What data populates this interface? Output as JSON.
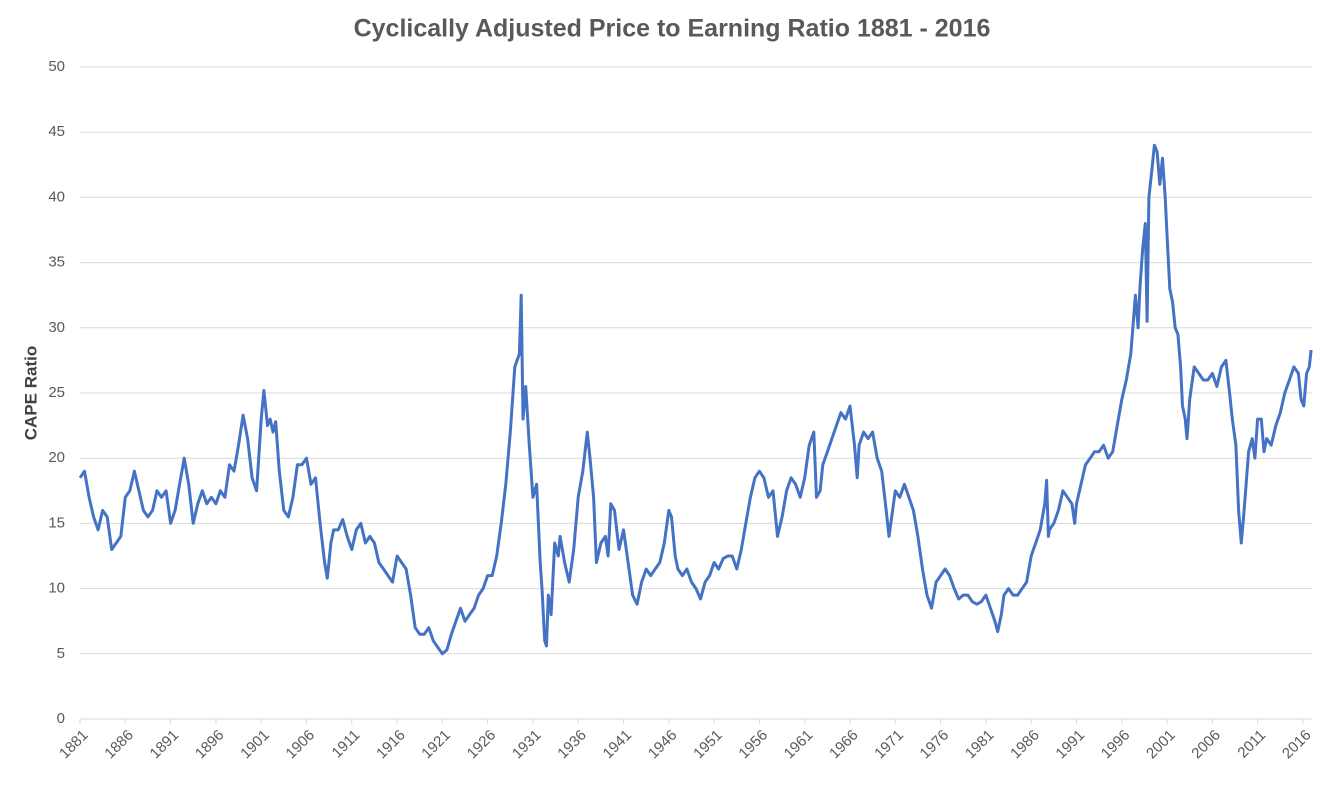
{
  "chart_data": {
    "type": "line",
    "title": "Cyclically Adjusted Price to Earning Ratio 1881 - 2016",
    "y_label": "CAPE Ratio",
    "xlim": [
      1881,
      2017
    ],
    "xticks": [
      1881,
      1886,
      1891,
      1896,
      1901,
      1906,
      1911,
      1916,
      1921,
      1926,
      1931,
      1936,
      1941,
      1946,
      1951,
      1956,
      1961,
      1966,
      1971,
      1976,
      1981,
      1986,
      1991,
      1996,
      2001,
      2006,
      2011,
      2016
    ],
    "ylim": [
      0,
      50
    ],
    "yticks": [
      0,
      5,
      10,
      15,
      20,
      25,
      30,
      35,
      40,
      45,
      50
    ],
    "grid": true,
    "series": [
      {
        "name": "CAPE Ratio",
        "color": "#4472c4",
        "x": [
          1881,
          1881.5,
          1882,
          1882.5,
          1883,
          1883.5,
          1884,
          1884.5,
          1885,
          1885.5,
          1886,
          1886.5,
          1887,
          1887.5,
          1888,
          1888.5,
          1889,
          1889.5,
          1890,
          1890.5,
          1891,
          1891.5,
          1892,
          1892.5,
          1893,
          1893.5,
          1894,
          1894.5,
          1895,
          1895.5,
          1896,
          1896.5,
          1897,
          1897.5,
          1898,
          1898.5,
          1899,
          1899.5,
          1900,
          1900.5,
          1901,
          1901.3,
          1901.7,
          1902,
          1902.3,
          1902.6,
          1903,
          1903.5,
          1904,
          1904.5,
          1905,
          1905.5,
          1906,
          1906.5,
          1907,
          1907.5,
          1908,
          1908.3,
          1908.7,
          1909,
          1909.5,
          1910,
          1910.5,
          1911,
          1911.5,
          1912,
          1912.5,
          1913,
          1913.5,
          1914,
          1914.5,
          1915,
          1915.5,
          1916,
          1916.5,
          1917,
          1917.5,
          1918,
          1918.5,
          1919,
          1919.5,
          1920,
          1920.5,
          1921,
          1921.5,
          1922,
          1922.5,
          1923,
          1923.5,
          1924,
          1924.5,
          1925,
          1925.5,
          1926,
          1926.5,
          1927,
          1927.5,
          1928,
          1928.5,
          1929,
          1929.5,
          1929.7,
          1929.9,
          1930.2,
          1930.6,
          1931,
          1931.4,
          1931.8,
          1932,
          1932.3,
          1932.5,
          1932.7,
          1933,
          1933.4,
          1933.8,
          1934,
          1934.5,
          1935,
          1935.5,
          1936,
          1936.5,
          1937,
          1937.3,
          1937.7,
          1938,
          1938.5,
          1939,
          1939.3,
          1939.6,
          1940,
          1940.5,
          1941,
          1941.5,
          1942,
          1942.5,
          1943,
          1943.5,
          1944,
          1944.5,
          1945,
          1945.5,
          1946,
          1946.3,
          1946.7,
          1947,
          1947.5,
          1948,
          1948.5,
          1949,
          1949.5,
          1950,
          1950.5,
          1951,
          1951.5,
          1952,
          1952.5,
          1953,
          1953.5,
          1954,
          1954.5,
          1955,
          1955.5,
          1956,
          1956.5,
          1957,
          1957.5,
          1958,
          1958.5,
          1959,
          1959.5,
          1960,
          1960.5,
          1961,
          1961.5,
          1962,
          1962.3,
          1962.7,
          1963,
          1963.5,
          1964,
          1964.5,
          1965,
          1965.5,
          1966,
          1966.5,
          1966.8,
          1967,
          1967.5,
          1968,
          1968.5,
          1969,
          1969.5,
          1970,
          1970.3,
          1970.7,
          1971,
          1971.5,
          1972,
          1972.5,
          1973,
          1973.5,
          1974,
          1974.5,
          1975,
          1975.5,
          1976,
          1976.5,
          1977,
          1977.5,
          1978,
          1978.5,
          1979,
          1979.5,
          1980,
          1980.5,
          1981,
          1981.5,
          1982,
          1982.3,
          1982.7,
          1983,
          1983.5,
          1984,
          1984.5,
          1985,
          1985.5,
          1986,
          1986.5,
          1987,
          1987.5,
          1987.7,
          1987.9,
          1988,
          1988.5,
          1989,
          1989.5,
          1990,
          1990.5,
          1990.8,
          1991,
          1991.5,
          1992,
          1992.5,
          1993,
          1993.5,
          1994,
          1994.5,
          1995,
          1995.5,
          1996,
          1996.5,
          1997,
          1997.5,
          1997.8,
          1998,
          1998.3,
          1998.6,
          1998.8,
          1999,
          1999.3,
          1999.6,
          1999.9,
          2000.2,
          2000.5,
          2000.8,
          2001,
          2001.3,
          2001.6,
          2001.9,
          2002.2,
          2002.5,
          2002.7,
          2003,
          2003.2,
          2003.5,
          2004,
          2004.5,
          2005,
          2005.5,
          2006,
          2006.5,
          2007,
          2007.5,
          2007.9,
          2008.2,
          2008.6,
          2008.9,
          2009.2,
          2009.5,
          2010,
          2010.4,
          2010.7,
          2011,
          2011.4,
          2011.7,
          2012,
          2012.5,
          2013,
          2013.5,
          2014,
          2014.5,
          2015,
          2015.5,
          2015.8,
          2016.1,
          2016.4,
          2016.7,
          2016.9
        ],
        "values": [
          18.5,
          19,
          17,
          15.5,
          14.5,
          16,
          15.5,
          13,
          13.5,
          14,
          17,
          17.5,
          19,
          17.5,
          16,
          15.5,
          16,
          17.5,
          17,
          17.5,
          15,
          16,
          18,
          20,
          18,
          15,
          16.5,
          17.5,
          16.5,
          17,
          16.5,
          17.5,
          17,
          19.5,
          19,
          21,
          23.3,
          21.5,
          18.5,
          17.5,
          23,
          25.2,
          22.5,
          23,
          22,
          22.8,
          19,
          16,
          15.5,
          17,
          19.5,
          19.5,
          20,
          18,
          18.5,
          15,
          12,
          10.8,
          13.5,
          14.5,
          14.5,
          15.3,
          14,
          13,
          14.5,
          15,
          13.5,
          14,
          13.5,
          12,
          11.5,
          11,
          10.5,
          12.5,
          12,
          11.5,
          9.5,
          7,
          6.5,
          6.5,
          7,
          6,
          5.5,
          5,
          5.3,
          6.5,
          7.5,
          8.5,
          7.5,
          8,
          8.5,
          9.5,
          10,
          11,
          11,
          12.5,
          15,
          18,
          22,
          27,
          28,
          32.5,
          23,
          25.5,
          21,
          17,
          18,
          12,
          10,
          6,
          5.6,
          9.5,
          8,
          13.5,
          12.5,
          14,
          12,
          10.5,
          13,
          17,
          19,
          22,
          20,
          17,
          12,
          13.5,
          14,
          12.5,
          16.5,
          16,
          13,
          14.5,
          12,
          9.5,
          8.8,
          10.5,
          11.5,
          11,
          11.5,
          12,
          13.5,
          16,
          15.5,
          12.5,
          11.5,
          11,
          11.5,
          10.5,
          10,
          9.2,
          10.5,
          11,
          12,
          11.5,
          12.3,
          12.5,
          12.5,
          11.5,
          13,
          15,
          17,
          18.5,
          19,
          18.5,
          17,
          17.5,
          14,
          15.5,
          17.5,
          18.5,
          18,
          17,
          18.5,
          21,
          22,
          17,
          17.5,
          19.5,
          20.5,
          21.5,
          22.5,
          23.5,
          23,
          24,
          21,
          18.5,
          21,
          22,
          21.5,
          22,
          20,
          19,
          16,
          14,
          16,
          17.5,
          17,
          18,
          17,
          16,
          14,
          11.5,
          9.5,
          8.5,
          10.5,
          11,
          11.5,
          11,
          10,
          9.2,
          9.5,
          9.5,
          9,
          8.8,
          9,
          9.5,
          8.5,
          7.5,
          6.7,
          8,
          9.5,
          10,
          9.5,
          9.5,
          10,
          10.5,
          12.5,
          13.5,
          14.5,
          16.5,
          18.3,
          14,
          14.5,
          15,
          16,
          17.5,
          17,
          16.5,
          15,
          16.5,
          18,
          19.5,
          20,
          20.5,
          20.5,
          21,
          20,
          20.5,
          22.5,
          24.5,
          26,
          28,
          32.5,
          30,
          33,
          36,
          38,
          30.5,
          40,
          42,
          44,
          43.5,
          41,
          43,
          40,
          37,
          33,
          32,
          30,
          29.5,
          27,
          24,
          23,
          21.5,
          24.5,
          27,
          26.5,
          26,
          26,
          26.5,
          25.5,
          27,
          27.5,
          25,
          23,
          21,
          16,
          13.5,
          16,
          20.5,
          21.5,
          20,
          23,
          23,
          20.5,
          21.5,
          21,
          22.5,
          23.5,
          25,
          26,
          27,
          26.5,
          24.5,
          24,
          26.5,
          27,
          28.3
        ]
      }
    ]
  }
}
